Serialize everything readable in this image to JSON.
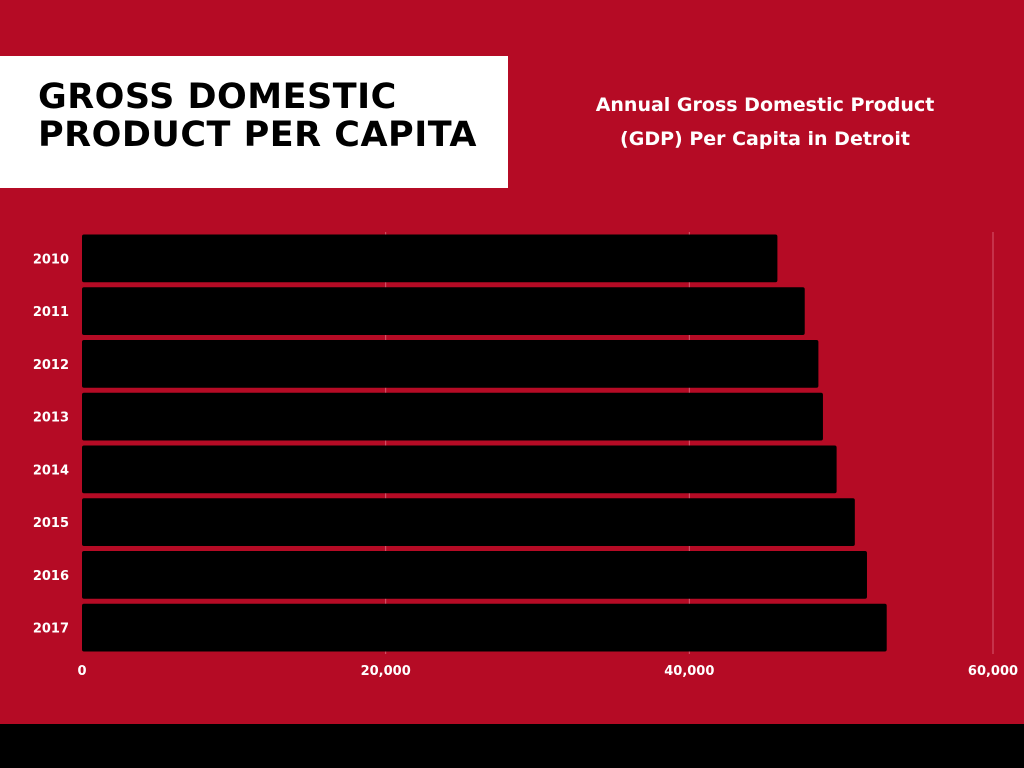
{
  "header": {
    "title": "GROSS DOMESTIC\nPRODUCT PER CAPITA",
    "subtitle": "Annual Gross Domestic Product\n(GDP) Per Capita in Detroit"
  },
  "colors": {
    "background": "#b50b25",
    "bar": "#000000",
    "title_box": "#ffffff",
    "text": "#ffffff",
    "gridline": "#d65a6e"
  },
  "chart_data": {
    "type": "bar",
    "orientation": "horizontal",
    "categories": [
      "2010",
      "2011",
      "2012",
      "2013",
      "2014",
      "2015",
      "2016",
      "2017"
    ],
    "values": [
      45800,
      47600,
      48500,
      48800,
      49700,
      50900,
      51700,
      53000
    ],
    "xlim": [
      0,
      60000
    ],
    "xticks": [
      0,
      20000,
      40000,
      60000
    ],
    "xtick_labels": [
      "0",
      "20,000",
      "40,000",
      "60,000"
    ],
    "grid": true,
    "legend": "none"
  }
}
